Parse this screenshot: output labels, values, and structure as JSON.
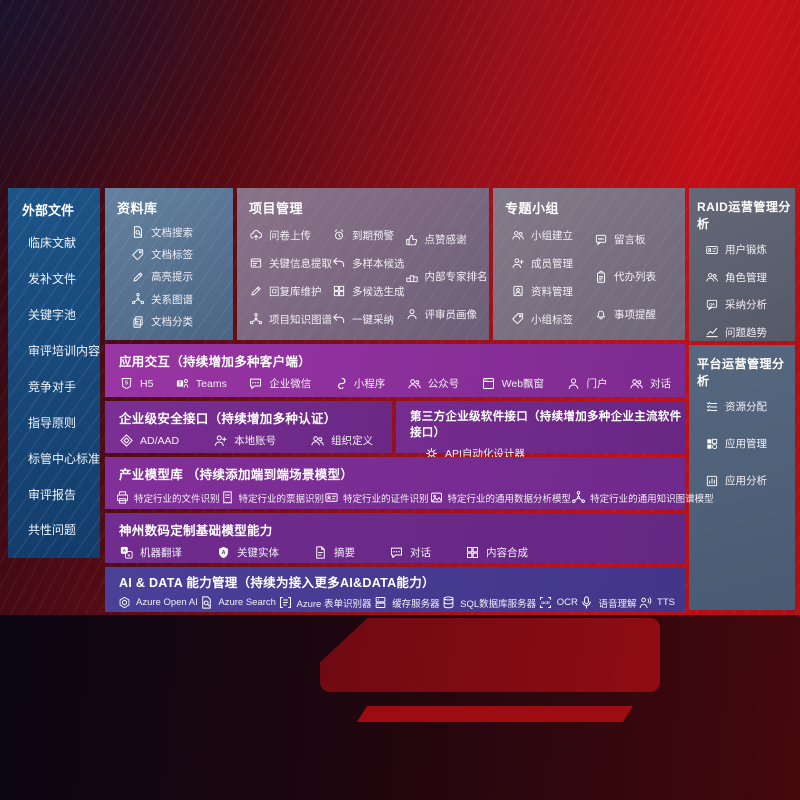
{
  "colors": {
    "background_red": "#c11016",
    "sidebar_blue": "#15497c",
    "repo_slate": "#54708e",
    "purple_accent": "#7c2b90",
    "indigo_accent": "#443a8e"
  },
  "sidebar": {
    "title": "外部文件",
    "items": [
      "临床文献",
      "发补文件",
      "关键字池",
      "审评培训内容",
      "竞争对手",
      "指导原则",
      "标管中心标准",
      "审评报告",
      "共性问题"
    ]
  },
  "top_row": {
    "repo": {
      "title": "资料库",
      "items": [
        {
          "icon": "doc-search",
          "label": "文档搜索"
        },
        {
          "icon": "doc-tag",
          "label": "文档标签"
        },
        {
          "icon": "highlight-pen",
          "label": "高亮提示"
        },
        {
          "icon": "relation-graph",
          "label": "关系图谱"
        },
        {
          "icon": "doc-category",
          "label": "文档分类"
        }
      ]
    },
    "project": {
      "title": "项目管理",
      "columns": [
        [
          {
            "icon": "cloud-upload",
            "label": "问卷上传"
          },
          {
            "icon": "window-extract",
            "label": "关键信息提取"
          },
          {
            "icon": "reply-pen",
            "label": "回复库维护"
          },
          {
            "icon": "project-graph",
            "label": "项目知识图谱"
          }
        ],
        [
          {
            "icon": "due-alarm",
            "label": "到期预警"
          },
          {
            "icon": "multi-sample",
            "label": "多样本候选"
          },
          {
            "icon": "multi-generate",
            "label": "多候选生成"
          },
          {
            "icon": "one-click-adopt",
            "label": "一键采纳"
          }
        ],
        [
          {
            "icon": "thumb-up",
            "label": "点赞感谢"
          },
          {
            "icon": "expert-rank",
            "label": "内部专家排名"
          },
          {
            "icon": "reviewer-profile",
            "label": "评审员画像"
          }
        ]
      ]
    },
    "group": {
      "title": "专题小组",
      "columns": [
        [
          {
            "icon": "group-create",
            "label": "小组建立"
          },
          {
            "icon": "member-manage",
            "label": "成员管理"
          },
          {
            "icon": "material-manage",
            "label": "资料管理"
          },
          {
            "icon": "group-tag",
            "label": "小组标签"
          }
        ],
        [
          {
            "icon": "bbs-board",
            "label": "留言板"
          },
          {
            "icon": "todo-list",
            "label": "代办列表"
          },
          {
            "icon": "reminder-bell",
            "label": "事项提醒"
          }
        ]
      ]
    }
  },
  "right_column": {
    "raid": {
      "title": "RAID运营管理分析",
      "items": [
        {
          "icon": "user-card",
          "label": "用户锻炼"
        },
        {
          "icon": "role-manage",
          "label": "角色管理"
        },
        {
          "icon": "adopt-analysis",
          "label": "采纳分析"
        },
        {
          "icon": "issue-trend",
          "label": "问题趋势"
        }
      ]
    },
    "platform": {
      "title": "平台运营管理分析",
      "items": [
        {
          "icon": "resource-list",
          "label": "资源分配"
        },
        {
          "icon": "app-manage",
          "label": "应用管理"
        },
        {
          "icon": "app-analysis",
          "label": "应用分析"
        }
      ]
    }
  },
  "rows": {
    "interaction": {
      "title": "应用交互（持续增加多种客户端）",
      "items": [
        {
          "icon": "h5",
          "label": "H5"
        },
        {
          "icon": "teams",
          "label": "Teams"
        },
        {
          "icon": "wechat-work",
          "label": "企业微信"
        },
        {
          "icon": "mini-program",
          "label": "小程序"
        },
        {
          "icon": "official-account",
          "label": "公众号"
        },
        {
          "icon": "web-popup",
          "label": "Web飘窗"
        },
        {
          "icon": "portal",
          "label": "门户"
        },
        {
          "icon": "dialog",
          "label": "对话"
        }
      ]
    },
    "security": {
      "title": "企业级安全接口（持续增加多种认证）",
      "items": [
        {
          "icon": "ad-aad",
          "label": "AD/AAD"
        },
        {
          "icon": "local-account",
          "label": "本地账号"
        },
        {
          "icon": "org-define",
          "label": "组织定义"
        }
      ]
    },
    "third_party": {
      "title": "第三方企业级软件接口（持续增加多种企业主流软件接口）",
      "items": [
        {
          "icon": "api-gear",
          "label": "API自动化设计器"
        }
      ]
    },
    "industry_models": {
      "title": "产业模型库 （持续添加端到端场景模型）",
      "items": [
        {
          "icon": "file-recog",
          "label": "特定行业的文件识别"
        },
        {
          "icon": "receipt-recog",
          "label": "特定行业的票据识别"
        },
        {
          "icon": "cert-recog",
          "label": "特定行业的证件识别"
        },
        {
          "icon": "data-model",
          "label": "特定行业的通用数据分析模型"
        },
        {
          "icon": "kg-model",
          "label": "特定行业的通用知识图谱模型"
        }
      ]
    },
    "custom_models": {
      "title": "神州数码定制基础模型能力",
      "items": [
        {
          "icon": "machine-translate",
          "label": "机器翻译"
        },
        {
          "icon": "key-entity",
          "label": "关键实体"
        },
        {
          "icon": "summary-doc",
          "label": "摘要"
        },
        {
          "icon": "chat-dialog",
          "label": "对话"
        },
        {
          "icon": "content-compose",
          "label": "内容合成"
        }
      ]
    },
    "ai_data": {
      "title": "AI & DATA 能力管理（持续为接入更多AI&DATA能力）",
      "items": [
        {
          "icon": "azure-openai",
          "label": "Azure Open AI"
        },
        {
          "icon": "azure-search",
          "label": "Azure Search"
        },
        {
          "icon": "form-recognizer",
          "label": "Azure 表单识别器"
        },
        {
          "icon": "cache-server",
          "label": "缓存服务器"
        },
        {
          "icon": "sql-db",
          "label": "SQL数据库服务器"
        },
        {
          "icon": "ocr",
          "label": "OCR"
        },
        {
          "icon": "speech-understand",
          "label": "语音理解"
        },
        {
          "icon": "tts",
          "label": "TTS"
        }
      ]
    }
  }
}
